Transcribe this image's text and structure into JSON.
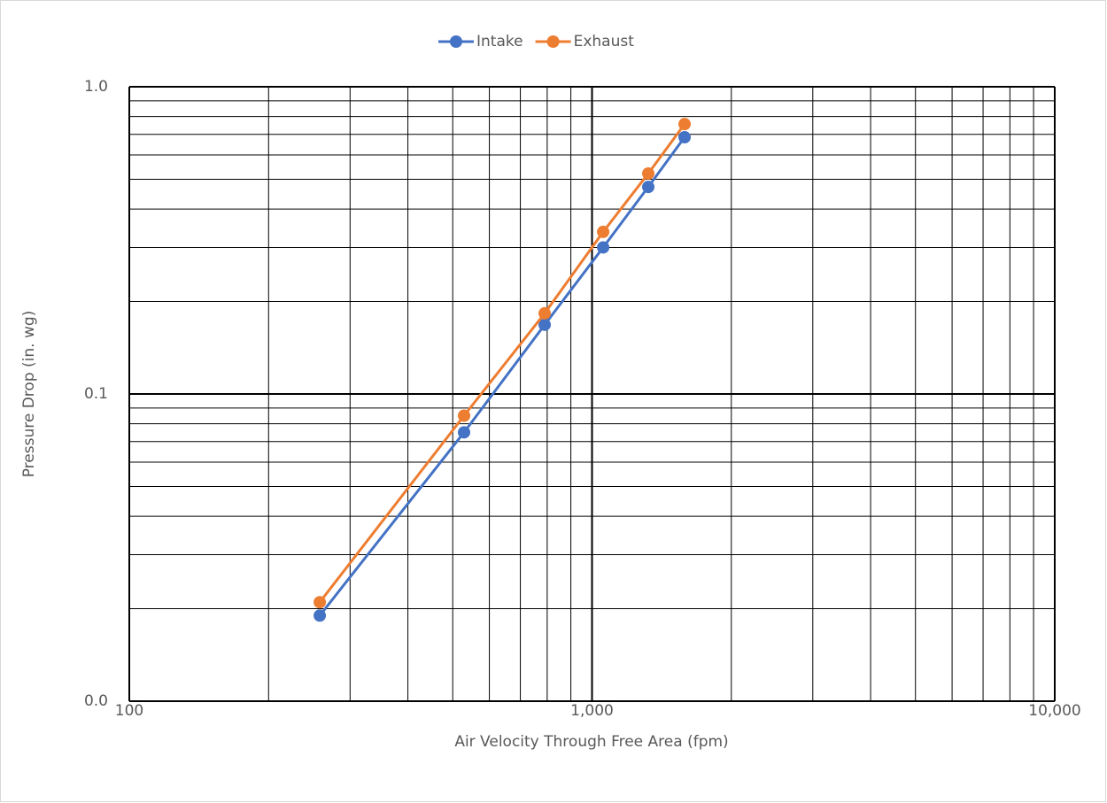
{
  "chart_data": {
    "type": "line",
    "x_label": "Air Velocity Through Free Area (fpm)",
    "y_label": "Pressure Drop (in. wg)",
    "xlog": true,
    "ylog": true,
    "grid": true,
    "minor_grid": true,
    "legend": "top",
    "x": [
      258,
      529,
      790,
      1057,
      1323,
      1585
    ],
    "series": [
      {
        "name": "Intake",
        "color": "#4472c4",
        "values": [
          0.019,
          0.075,
          0.168,
          0.3,
          0.472,
          0.685
        ]
      },
      {
        "name": "Exhaust",
        "color": "#ed7d31",
        "values": [
          0.021,
          0.085,
          0.183,
          0.337,
          0.522,
          0.756
        ]
      }
    ],
    "xlim": [
      100,
      10000
    ],
    "xticks": [
      100,
      {
        "value": 1000,
        "label": "1,000"
      },
      {
        "value": 10000,
        "label": "10,000"
      }
    ],
    "ylim": [
      0.01,
      1
    ],
    "yticks": [
      {
        "value": 0.01,
        "label": "0.0"
      },
      0.1,
      {
        "value": 1,
        "label": "1.0"
      }
    ]
  }
}
